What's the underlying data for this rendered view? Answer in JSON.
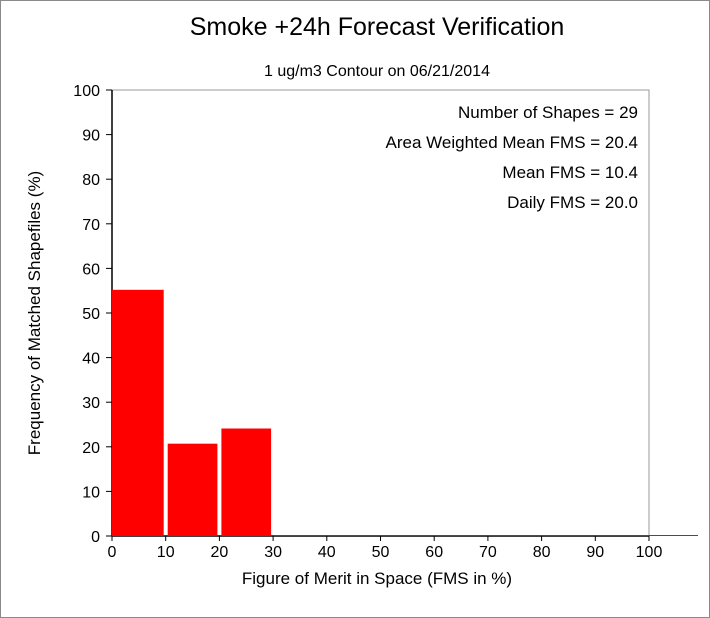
{
  "chart_data": {
    "type": "bar",
    "title": "Smoke +24h Forecast Verification",
    "subtitle": "1 ug/m3 Contour on 06/21/2014",
    "xlabel": "Figure of Merit in Space (FMS in %)",
    "ylabel": "Frequency of Matched Shapefiles (%)",
    "xlim": [
      0,
      100
    ],
    "ylim": [
      0,
      100
    ],
    "x_ticks": [
      "0",
      "10",
      "20",
      "30",
      "40",
      "50",
      "60",
      "70",
      "80",
      "90",
      "100"
    ],
    "y_ticks": [
      "0",
      "10",
      "20",
      "30",
      "40",
      "50",
      "60",
      "70",
      "80",
      "90",
      "100"
    ],
    "bins": [
      {
        "from": 0,
        "to": 10,
        "value": 55.2
      },
      {
        "from": 10,
        "to": 20,
        "value": 20.7
      },
      {
        "from": 20,
        "to": 30,
        "value": 24.1
      },
      {
        "from": 30,
        "to": 40,
        "value": 0
      },
      {
        "from": 40,
        "to": 50,
        "value": 0
      },
      {
        "from": 50,
        "to": 60,
        "value": 0
      },
      {
        "from": 60,
        "to": 70,
        "value": 0
      },
      {
        "from": 70,
        "to": 80,
        "value": 0
      },
      {
        "from": 80,
        "to": 90,
        "value": 0
      },
      {
        "from": 90,
        "to": 100,
        "value": 0
      }
    ],
    "bar_color": "#ff0000",
    "grid": false,
    "annotations": [
      "Number of Shapes = 29",
      "Area Weighted Mean FMS = 20.4",
      "Mean FMS = 10.4",
      "Daily FMS = 20.0"
    ]
  }
}
